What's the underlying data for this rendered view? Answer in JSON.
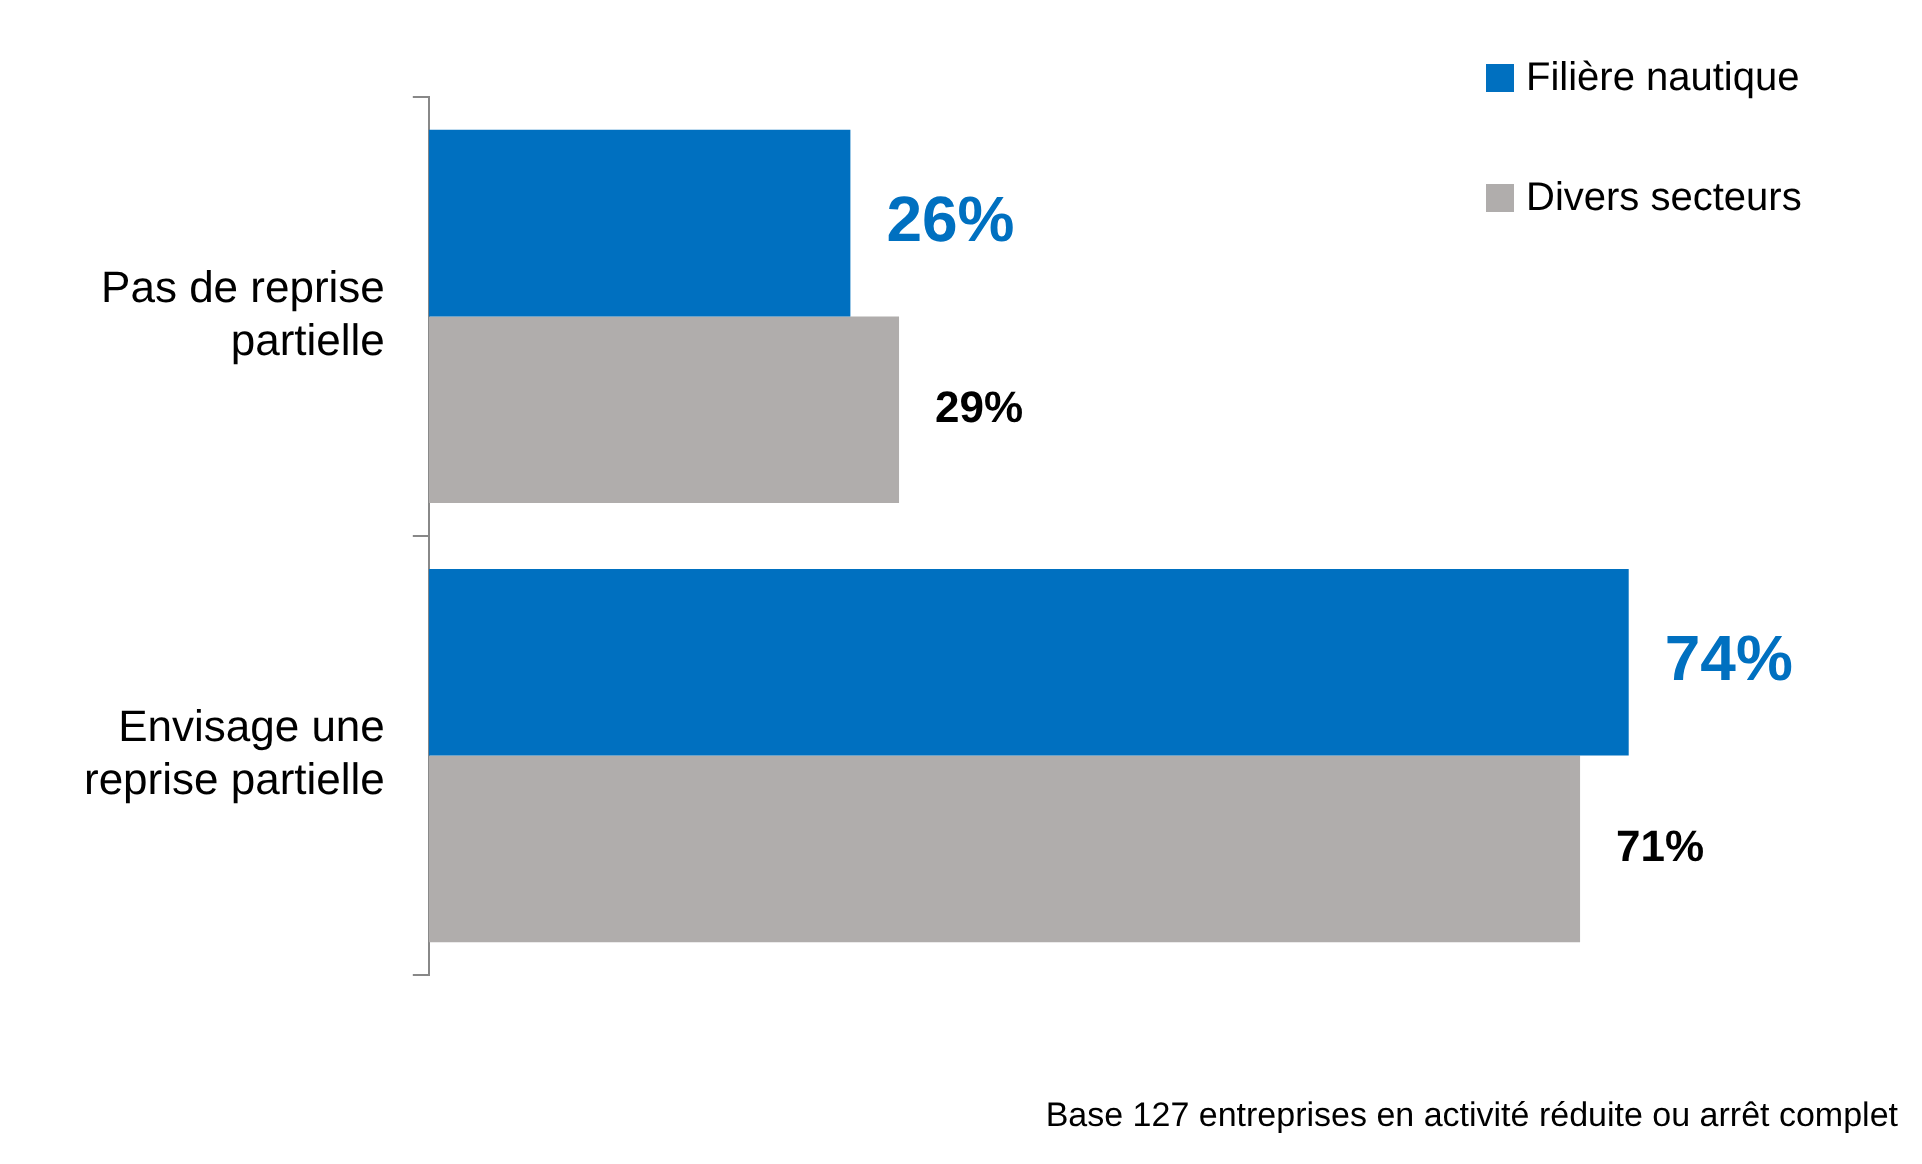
{
  "chart_data": {
    "type": "bar",
    "orientation": "horizontal",
    "categories": [
      "Pas de reprise partielle",
      "Envisage une reprise partielle"
    ],
    "series": [
      {
        "name": "Filière nautique",
        "color": "#0070c0",
        "values": [
          26,
          74
        ],
        "value_labels": [
          "26%",
          "74%"
        ]
      },
      {
        "name": "Divers secteurs",
        "color": "#b0adac",
        "values": [
          29,
          71
        ],
        "value_labels": [
          "29%",
          "71%"
        ]
      }
    ],
    "legend": "top right",
    "annotations": [
      "Base 127 entreprises en activité réduite ou arrêt complet"
    ]
  }
}
